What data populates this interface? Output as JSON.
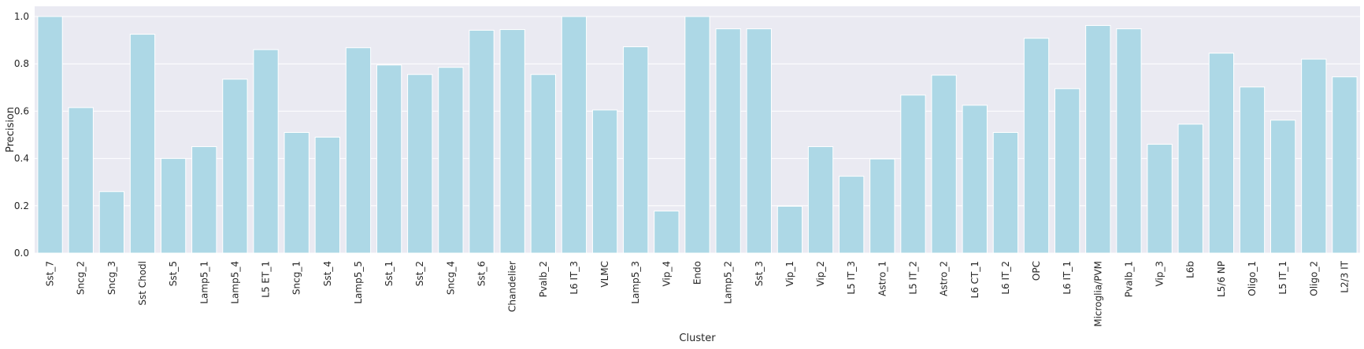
{
  "chart_data": {
    "type": "bar",
    "xlabel": "Cluster",
    "ylabel": "Precision",
    "ylim": [
      0,
      1.0
    ],
    "yticks": [
      "0.0",
      "0.2",
      "0.4",
      "0.6",
      "0.8",
      "1.0"
    ],
    "grid": true,
    "bar_color": "#add8e6",
    "background_color": "#eaeaf2",
    "categories": [
      "Sst_7",
      "Sncg_2",
      "Sncg_3",
      "Sst Chodl",
      "Sst_5",
      "Lamp5_1",
      "Lamp5_4",
      "L5 ET_1",
      "Sncg_1",
      "Sst_4",
      "Lamp5_5",
      "Sst_1",
      "Sst_2",
      "Sncg_4",
      "Sst_6",
      "Chandelier",
      "Pvalb_2",
      "L6 IT_3",
      "VLMC",
      "Lamp5_3",
      "Vip_4",
      "Endo",
      "Lamp5_2",
      "Sst_3",
      "Vip_1",
      "Vip_2",
      "L5 IT_3",
      "Astro_1",
      "L5 IT_2",
      "Astro_2",
      "L6 CT_1",
      "L6 IT_2",
      "OPC",
      "L6 IT_1",
      "Microglia/PVM",
      "Pvalb_1",
      "Vip_3",
      "L6b",
      "L5/6 NP",
      "Oligo_1",
      "L5 IT_1",
      "Oligo_2",
      "L2/3 IT"
    ],
    "values": [
      1.0,
      0.615,
      0.26,
      0.925,
      0.4,
      0.45,
      0.735,
      0.86,
      0.51,
      0.49,
      0.868,
      0.795,
      0.755,
      0.785,
      0.942,
      0.945,
      0.755,
      1.0,
      0.605,
      0.872,
      0.178,
      1.0,
      0.948,
      0.948,
      0.198,
      0.45,
      0.325,
      0.398,
      0.668,
      0.752,
      0.625,
      0.51,
      0.908,
      0.695,
      0.962,
      0.948,
      0.46,
      0.545,
      0.845,
      0.702,
      0.562,
      0.82,
      0.745
    ]
  }
}
